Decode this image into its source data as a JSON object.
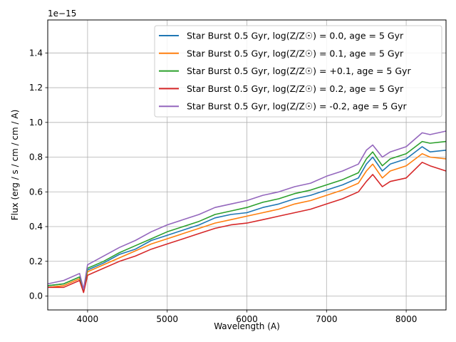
{
  "chart_data": {
    "type": "line",
    "title": "",
    "xlabel": "Wavelength (A)",
    "ylabel": "Flux (erg / s / cm / cm / A)",
    "offset_text": "1e−15",
    "xlim": [
      3500,
      8500
    ],
    "ylim": [
      -0.08,
      1.59
    ],
    "y_scale_factor": "1e-15",
    "grid": true,
    "legend_position": "upper right",
    "x_ticks": [
      4000,
      5000,
      6000,
      7000,
      8000
    ],
    "x_tick_labels": [
      "4000",
      "5000",
      "6000",
      "7000",
      "8000"
    ],
    "y_ticks": [
      0.0,
      0.2,
      0.4,
      0.6,
      0.8,
      1.0,
      1.2,
      1.4
    ],
    "y_tick_labels": [
      "0.0",
      "0.2",
      "0.4",
      "0.6",
      "0.8",
      "1.0",
      "1.2",
      "1.4"
    ],
    "x": [
      3500,
      3700,
      3900,
      3950,
      4000,
      4200,
      4400,
      4600,
      4800,
      5000,
      5200,
      5400,
      5600,
      5800,
      6000,
      6200,
      6400,
      6600,
      6800,
      7000,
      7200,
      7400,
      7500,
      7580,
      7700,
      7800,
      8000,
      8200,
      8300,
      8500
    ],
    "series": [
      {
        "name": "Star Burst 0.5 Gyr, log(Z/Z☉) = 0.0, age = 5 Gyr",
        "color": "#1f77b4",
        "values": [
          0.06,
          0.07,
          0.11,
          0.03,
          0.15,
          0.19,
          0.24,
          0.27,
          0.32,
          0.35,
          0.38,
          0.41,
          0.45,
          0.47,
          0.48,
          0.51,
          0.53,
          0.56,
          0.58,
          0.61,
          0.64,
          0.68,
          0.76,
          0.8,
          0.72,
          0.76,
          0.79,
          0.86,
          0.83,
          0.84
        ]
      },
      {
        "name": "Star Burst 0.5 Gyr, log(Z/Z☉) = 0.1, age = 5 Gyr",
        "color": "#ff7f0e",
        "values": [
          0.05,
          0.06,
          0.1,
          0.03,
          0.14,
          0.18,
          0.22,
          0.26,
          0.3,
          0.33,
          0.36,
          0.39,
          0.42,
          0.44,
          0.46,
          0.48,
          0.5,
          0.53,
          0.55,
          0.58,
          0.61,
          0.65,
          0.72,
          0.76,
          0.68,
          0.72,
          0.75,
          0.82,
          0.8,
          0.79
        ]
      },
      {
        "name": "Star Burst 0.5 Gyr, log(Z/Z☉) = +0.1, age = 5 Gyr",
        "color": "#2ca02c",
        "values": [
          0.06,
          0.07,
          0.11,
          0.03,
          0.16,
          0.2,
          0.25,
          0.29,
          0.33,
          0.37,
          0.4,
          0.43,
          0.47,
          0.49,
          0.51,
          0.54,
          0.56,
          0.59,
          0.61,
          0.64,
          0.67,
          0.71,
          0.79,
          0.83,
          0.75,
          0.79,
          0.82,
          0.89,
          0.88,
          0.89
        ]
      },
      {
        "name": "Star Burst 0.5 Gyr, log(Z/Z☉) = 0.2, age = 5 Gyr",
        "color": "#d62728",
        "values": [
          0.05,
          0.05,
          0.09,
          0.02,
          0.12,
          0.16,
          0.2,
          0.23,
          0.27,
          0.3,
          0.33,
          0.36,
          0.39,
          0.41,
          0.42,
          0.44,
          0.46,
          0.48,
          0.5,
          0.53,
          0.56,
          0.6,
          0.66,
          0.7,
          0.63,
          0.66,
          0.68,
          0.77,
          0.75,
          0.72
        ]
      },
      {
        "name": "Star Burst 0.5 Gyr, log(Z/Z☉) = -0.2, age = 5 Gyr",
        "color": "#9467bd",
        "values": [
          0.07,
          0.09,
          0.13,
          0.04,
          0.18,
          0.23,
          0.28,
          0.32,
          0.37,
          0.41,
          0.44,
          0.47,
          0.51,
          0.53,
          0.55,
          0.58,
          0.6,
          0.63,
          0.65,
          0.69,
          0.72,
          0.76,
          0.84,
          0.87,
          0.8,
          0.83,
          0.86,
          0.94,
          0.93,
          0.95
        ]
      }
    ]
  }
}
